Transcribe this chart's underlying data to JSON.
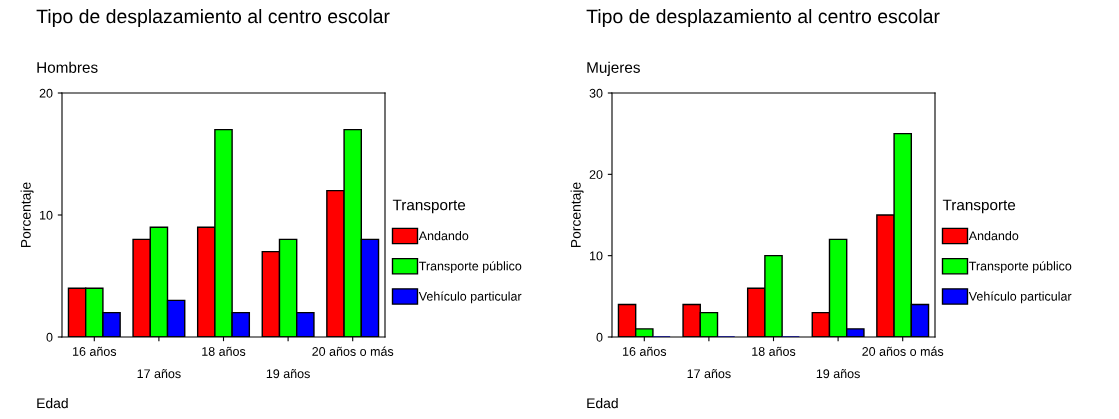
{
  "chart_data": [
    {
      "type": "bar",
      "title": "Tipo de desplazamiento al centro escolar",
      "subtitle": "Hombres",
      "xlabel": "Edad",
      "ylabel": "Porcentaje",
      "legend_title": "Transporte",
      "legend": "right",
      "categories": [
        "16 años",
        "17 años",
        "18 años",
        "19 años",
        "20 años o más"
      ],
      "series": [
        {
          "name": "Andando",
          "color": "#ff0000",
          "values": [
            4,
            8,
            9,
            7,
            12
          ]
        },
        {
          "name": "Transporte público",
          "color": "#00ff00",
          "values": [
            4,
            9,
            17,
            8,
            17
          ]
        },
        {
          "name": "Vehículo particular",
          "color": "#0000ff",
          "values": [
            2,
            3,
            2,
            2,
            8
          ]
        }
      ],
      "ylim": [
        0,
        20
      ],
      "yticks": [
        0,
        10,
        20
      ],
      "grid": false
    },
    {
      "type": "bar",
      "title": "Tipo de desplazamiento al centro escolar",
      "subtitle": "Mujeres",
      "xlabel": "Edad",
      "ylabel": "Porcentaje",
      "legend_title": "Transporte",
      "legend": "right",
      "categories": [
        "16 años",
        "17 años",
        "18 años",
        "19 años",
        "20 años o más"
      ],
      "series": [
        {
          "name": "Andando",
          "color": "#ff0000",
          "values": [
            4,
            4,
            6,
            3,
            15
          ]
        },
        {
          "name": "Transporte público",
          "color": "#00ff00",
          "values": [
            1,
            3,
            10,
            12,
            25
          ]
        },
        {
          "name": "Vehículo particular",
          "color": "#0000ff",
          "values": [
            0,
            0,
            0,
            1,
            4
          ]
        }
      ],
      "ylim": [
        0,
        30
      ],
      "yticks": [
        0,
        10,
        20,
        30
      ],
      "grid": false
    }
  ]
}
